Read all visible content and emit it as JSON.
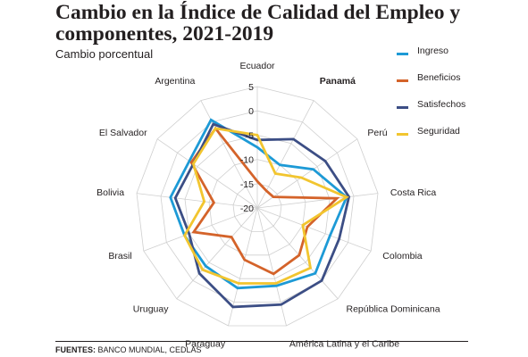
{
  "header": {
    "title": "Cambio en la Índice de Calidad del Empleo y componentes, 2021-2019",
    "subtitle": "Cambio porcentual"
  },
  "footer": {
    "label": "FUENTES:",
    "text": "BANCO MUNDIAL, CEDLAS"
  },
  "chart_data": {
    "type": "radar",
    "title": "Cambio en la Índice de Calidad del Empleo y componentes, 2021-2019",
    "subtitle": "Cambio porcentual",
    "categories": [
      "Ecuador",
      "Panamá",
      "Perú",
      "Costa Rica",
      "Colombia",
      "República Dominicana",
      "América Latina y el Caribe",
      "Paraguay",
      "Uruguay",
      "Brasil",
      "Bolivia",
      "El Salvador",
      "Argentina"
    ],
    "highlight_category": "Panamá",
    "rlim": [
      -20,
      5
    ],
    "ticks": [
      5,
      0,
      -5,
      -10,
      -15,
      -20
    ],
    "grid": true,
    "legend_position": "top-right",
    "series": [
      {
        "name": "Ingreso",
        "color": "#1d9ad6",
        "values": [
          -7.5,
          -10,
          -6,
          -1.5,
          -4,
          -2,
          -3.5,
          -3,
          -4,
          -4,
          -2,
          -3,
          0.5
        ]
      },
      {
        "name": "Beneficios",
        "color": "#d4632a",
        "values": [
          -14.5,
          -16,
          -16,
          -3.5,
          -9,
          -7,
          -6,
          -9,
          -12,
          -6,
          -11,
          -3.5,
          -1.5
        ]
      },
      {
        "name": "Satisfechos",
        "color": "#3c4e85",
        "values": [
          -6,
          -4,
          -3,
          -1,
          -2,
          0,
          0.5,
          1,
          -2,
          -5,
          -3,
          -4,
          -0.5
        ]
      },
      {
        "name": "Seguridad",
        "color": "#f2c52f",
        "values": [
          -5,
          -12,
          -9,
          -1.5,
          -10,
          -3.5,
          -4,
          -4,
          -3,
          -4,
          -9,
          -4,
          -1.5
        ]
      }
    ]
  }
}
